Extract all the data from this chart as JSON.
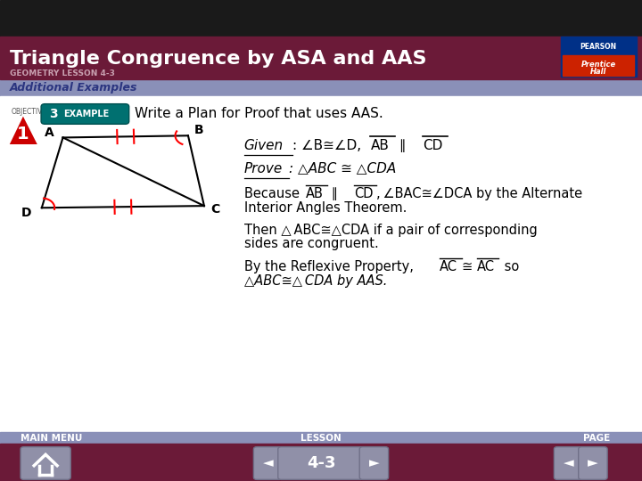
{
  "title": "Triangle Congruence by ASA and AAS",
  "subtitle": "GEOMETRY LESSON 4-3",
  "section_label": "Additional Examples",
  "header_bg": "#6B1A38",
  "header_dark_bar": "#1a1a1a",
  "section_bg": "#8A90B8",
  "body_bg": "#FFFFFF",
  "footer_bg": "#6B1A38",
  "footer_bar_bg": "#8A90B8",
  "title_color": "#FFFFFF",
  "subtitle_color": "#D0A0B0",
  "section_color": "#2B3580",
  "objective_num": "1",
  "example_num": "3",
  "example_text": "Write a Plan for Proof that uses AAS.",
  "given_text": "Given",
  "prove_text": "Prove",
  "footer_left": "MAIN MENU",
  "footer_center": "LESSON",
  "footer_right": "PAGE",
  "page_num": "4-3",
  "pearson_box_color": "#003087",
  "red_box_color": "#CC2200"
}
